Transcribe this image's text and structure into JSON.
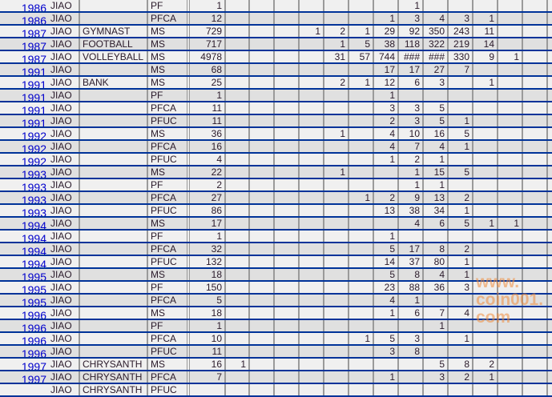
{
  "sheet": {
    "rows": [
      {
        "year": "1986",
        "org": "JIAO",
        "name": "",
        "type": "PF",
        "total": "1",
        "cells": [
          "",
          "",
          "",
          "",
          "",
          "",
          "",
          "1",
          "",
          "",
          "",
          "",
          ""
        ]
      },
      {
        "year": "1986",
        "org": "JIAO",
        "name": "",
        "type": "PFCA",
        "total": "12",
        "cells": [
          "",
          "",
          "",
          "",
          "",
          "",
          "1",
          "3",
          "4",
          "3",
          "1",
          "",
          ""
        ]
      },
      {
        "year": "1987",
        "org": "JIAO",
        "name": "GYMNAST",
        "type": "MS",
        "total": "729",
        "cells": [
          "",
          "",
          "",
          "1",
          "2",
          "1",
          "29",
          "92",
          "350",
          "243",
          "11",
          "",
          ""
        ]
      },
      {
        "year": "1987",
        "org": "JIAO",
        "name": "FOOTBALL",
        "type": "MS",
        "total": "717",
        "cells": [
          "",
          "",
          "",
          "",
          "1",
          "5",
          "38",
          "118",
          "322",
          "219",
          "14",
          "",
          ""
        ]
      },
      {
        "year": "1987",
        "org": "JIAO",
        "name": "VOLLEYBALL",
        "type": "MS",
        "total": "4978",
        "cells": [
          "",
          "",
          "",
          "",
          "31",
          "57",
          "744",
          "###",
          "###",
          "330",
          "9",
          "1",
          ""
        ]
      },
      {
        "year": "1991",
        "org": "JIAO",
        "name": "",
        "type": "MS",
        "total": "68",
        "cells": [
          "",
          "",
          "",
          "",
          "",
          "",
          "17",
          "17",
          "27",
          "7",
          "",
          "",
          ""
        ]
      },
      {
        "year": "1991",
        "org": "JIAO",
        "name": "BANK",
        "type": "MS",
        "total": "25",
        "cells": [
          "",
          "",
          "",
          "",
          "2",
          "1",
          "12",
          "6",
          "3",
          "",
          "1",
          "",
          ""
        ]
      },
      {
        "year": "1991",
        "org": "JIAO",
        "name": "",
        "type": "PF",
        "total": "1",
        "cells": [
          "",
          "",
          "",
          "",
          "",
          "",
          "1",
          "",
          "",
          "",
          "",
          "",
          ""
        ]
      },
      {
        "year": "1991",
        "org": "JIAO",
        "name": "",
        "type": "PFCA",
        "total": "11",
        "cells": [
          "",
          "",
          "",
          "",
          "",
          "",
          "3",
          "3",
          "5",
          "",
          "",
          "",
          ""
        ]
      },
      {
        "year": "1991",
        "org": "JIAO",
        "name": "",
        "type": "PFUC",
        "total": "11",
        "cells": [
          "",
          "",
          "",
          "",
          "",
          "",
          "2",
          "3",
          "5",
          "1",
          "",
          "",
          ""
        ]
      },
      {
        "year": "1992",
        "org": "JIAO",
        "name": "",
        "type": "MS",
        "total": "36",
        "cells": [
          "",
          "",
          "",
          "",
          "1",
          "",
          "4",
          "10",
          "16",
          "5",
          "",
          "",
          ""
        ]
      },
      {
        "year": "1992",
        "org": "JIAO",
        "name": "",
        "type": "PFCA",
        "total": "16",
        "cells": [
          "",
          "",
          "",
          "",
          "",
          "",
          "4",
          "7",
          "4",
          "1",
          "",
          "",
          ""
        ]
      },
      {
        "year": "1992",
        "org": "JIAO",
        "name": "",
        "type": "PFUC",
        "total": "4",
        "cells": [
          "",
          "",
          "",
          "",
          "",
          "",
          "1",
          "2",
          "1",
          "",
          "",
          "",
          ""
        ]
      },
      {
        "year": "1993",
        "org": "JIAO",
        "name": "",
        "type": "MS",
        "total": "22",
        "cells": [
          "",
          "",
          "",
          "",
          "1",
          "",
          "",
          "1",
          "15",
          "5",
          "",
          "",
          ""
        ]
      },
      {
        "year": "1993",
        "org": "JIAO",
        "name": "",
        "type": "PF",
        "total": "2",
        "cells": [
          "",
          "",
          "",
          "",
          "",
          "",
          "",
          "1",
          "1",
          "",
          "",
          "",
          ""
        ]
      },
      {
        "year": "1993",
        "org": "JIAO",
        "name": "",
        "type": "PFCA",
        "total": "27",
        "cells": [
          "",
          "",
          "",
          "",
          "",
          "1",
          "2",
          "9",
          "13",
          "2",
          "",
          "",
          ""
        ]
      },
      {
        "year": "1993",
        "org": "JIAO",
        "name": "",
        "type": "PFUC",
        "total": "86",
        "cells": [
          "",
          "",
          "",
          "",
          "",
          "",
          "13",
          "38",
          "34",
          "1",
          "",
          "",
          ""
        ]
      },
      {
        "year": "1994",
        "org": "JIAO",
        "name": "",
        "type": "MS",
        "total": "17",
        "cells": [
          "",
          "",
          "",
          "",
          "",
          "",
          "",
          "4",
          "6",
          "5",
          "1",
          "1",
          ""
        ]
      },
      {
        "year": "1994",
        "org": "JIAO",
        "name": "",
        "type": "PF",
        "total": "1",
        "cells": [
          "",
          "",
          "",
          "",
          "",
          "",
          "1",
          "",
          "",
          "",
          "",
          "",
          ""
        ]
      },
      {
        "year": "1994",
        "org": "JIAO",
        "name": "",
        "type": "PFCA",
        "total": "32",
        "cells": [
          "",
          "",
          "",
          "",
          "",
          "",
          "5",
          "17",
          "8",
          "2",
          "",
          "",
          ""
        ]
      },
      {
        "year": "1994",
        "org": "JIAO",
        "name": "",
        "type": "PFUC",
        "total": "132",
        "cells": [
          "",
          "",
          "",
          "",
          "",
          "",
          "14",
          "37",
          "80",
          "1",
          "",
          "",
          ""
        ]
      },
      {
        "year": "1995",
        "org": "JIAO",
        "name": "",
        "type": "MS",
        "total": "18",
        "cells": [
          "",
          "",
          "",
          "",
          "",
          "",
          "5",
          "8",
          "4",
          "1",
          "",
          "",
          ""
        ]
      },
      {
        "year": "1995",
        "org": "JIAO",
        "name": "",
        "type": "PF",
        "total": "150",
        "cells": [
          "",
          "",
          "",
          "",
          "",
          "",
          "23",
          "88",
          "36",
          "3",
          "",
          "",
          ""
        ]
      },
      {
        "year": "1995",
        "org": "JIAO",
        "name": "",
        "type": "PFCA",
        "total": "5",
        "cells": [
          "",
          "",
          "",
          "",
          "",
          "",
          "4",
          "1",
          "",
          "",
          "",
          "",
          ""
        ]
      },
      {
        "year": "1996",
        "org": "JIAO",
        "name": "",
        "type": "MS",
        "total": "18",
        "cells": [
          "",
          "",
          "",
          "",
          "",
          "",
          "1",
          "6",
          "7",
          "4",
          "",
          "",
          ""
        ]
      },
      {
        "year": "1996",
        "org": "JIAO",
        "name": "",
        "type": "PF",
        "total": "1",
        "cells": [
          "",
          "",
          "",
          "",
          "",
          "",
          "",
          "",
          "1",
          "",
          "",
          "",
          ""
        ]
      },
      {
        "year": "1996",
        "org": "JIAO",
        "name": "",
        "type": "PFCA",
        "total": "10",
        "cells": [
          "",
          "",
          "",
          "",
          "",
          "1",
          "5",
          "3",
          "",
          "1",
          "",
          "",
          ""
        ]
      },
      {
        "year": "1996",
        "org": "JIAO",
        "name": "",
        "type": "PFUC",
        "total": "11",
        "cells": [
          "",
          "",
          "",
          "",
          "",
          "",
          "3",
          "8",
          "",
          "",
          "",
          "",
          ""
        ]
      },
      {
        "year": "1997",
        "org": "JIAO",
        "name": "CHRYSANTH",
        "type": "MS",
        "total": "16",
        "cells": [
          "1",
          "",
          "",
          "",
          "",
          "",
          "",
          "",
          "5",
          "8",
          "2",
          "",
          ""
        ]
      },
      {
        "year": "1997",
        "org": "JIAO",
        "name": "CHRYSANTH",
        "type": "PFCA",
        "total": "7",
        "cells": [
          "",
          "",
          "",
          "",
          "",
          "",
          "1",
          "",
          "3",
          "2",
          "1",
          "",
          ""
        ]
      },
      {
        "year": "",
        "org": "JIAO",
        "name": "CHRYSANTH",
        "type": "PFUC",
        "total": "",
        "cells": [
          "",
          "",
          "",
          "",
          "",
          "",
          "",
          "",
          "",
          "",
          "",
          "",
          ""
        ]
      }
    ]
  },
  "watermark": "www.coin001.com",
  "colors": {
    "year_text": "#0000cc",
    "row_divider": "#003399",
    "column_divider": "#9a9a9a",
    "row_light": "#f0f0f0",
    "row_dark": "#e0e0e0"
  }
}
